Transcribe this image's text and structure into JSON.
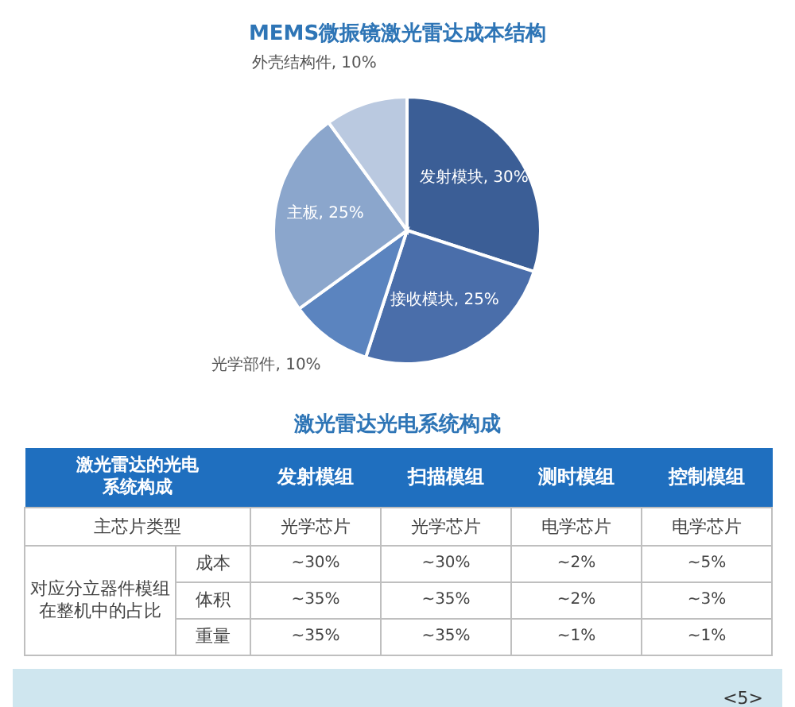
{
  "chart_data": [
    {
      "type": "pie",
      "title": "MEMS微振镜激光雷达成本结构",
      "categories": [
        "发射模块",
        "接收模块",
        "光学部件",
        "主板",
        "外壳结构件"
      ],
      "values": [
        30,
        25,
        10,
        25,
        10
      ],
      "value_labels": [
        "30%",
        "25%",
        "10%",
        "25%",
        "10%"
      ],
      "colors": [
        "#3b5e96",
        "#4a6eaa",
        "#5b84bf",
        "#8ba6cc",
        "#bac9e0"
      ]
    },
    {
      "type": "other",
      "title": "激光雷达光电系统构成",
      "ylabel": "激光雷达的光电系统构成",
      "categories": [
        "发射模组",
        "扫描模组",
        "测时模组",
        "控制模组"
      ],
      "y_categories": [
        "主芯片类型",
        "成本",
        "体积",
        "重量"
      ],
      "cell_labels": [
        [
          "光学芯片",
          "光学芯片",
          "电学芯片",
          "电学芯片"
        ],
        [
          "~30%",
          "~30%",
          "~2%",
          "~5%"
        ],
        [
          "~35%",
          "~35%",
          "~2%",
          "~3%"
        ],
        [
          "~35%",
          "~35%",
          "~1%",
          "~1%"
        ]
      ],
      "annotations": [
        "对应分立器件模组在整机中的占比",
        "<5>"
      ]
    }
  ]
}
